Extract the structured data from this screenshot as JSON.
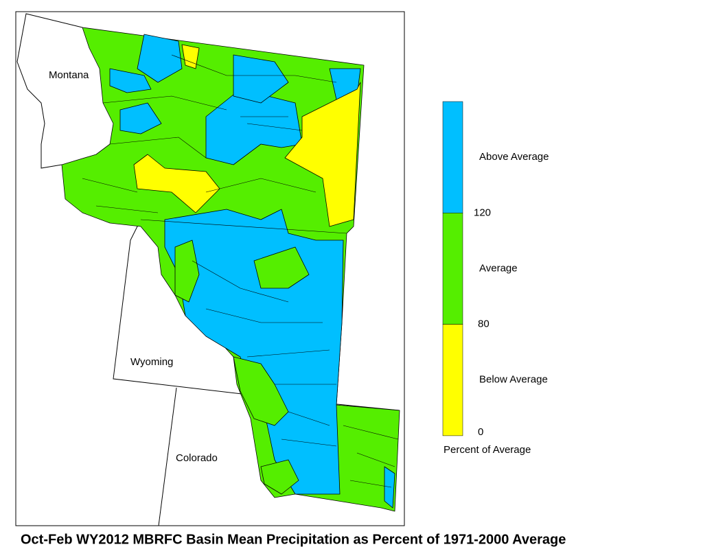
{
  "map": {
    "title": "Oct-Feb WY2012 MBRFC Basin Mean Precipitation as Percent of 1971-2000 Average",
    "state_labels": [
      "Montana",
      "Wyoming",
      "Colorado"
    ],
    "legend": {
      "title": "Percent of Average",
      "classes": [
        {
          "label": "Above Average",
          "color": "#00bfff"
        },
        {
          "label": "Average",
          "color": "#55ee00"
        },
        {
          "label": "Below Average",
          "color": "#ffff00"
        }
      ],
      "breaks": [
        120,
        80,
        0
      ]
    }
  }
}
